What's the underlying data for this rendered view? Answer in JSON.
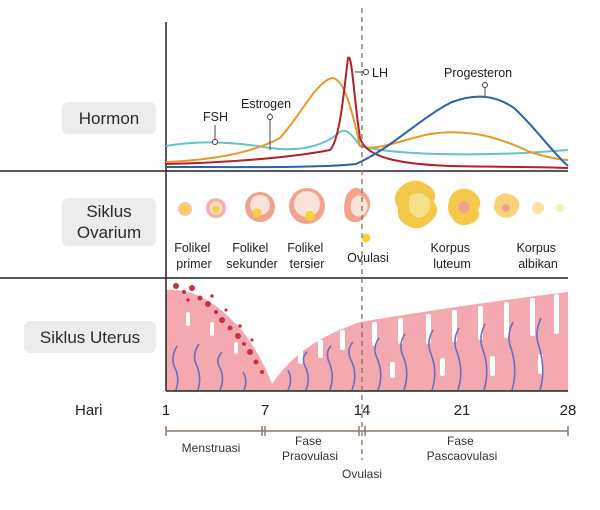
{
  "rows": {
    "hormon": "Hormon",
    "ovarium_line1": "Siklus",
    "ovarium_line2": "Ovarium",
    "uterus": "Siklus Uterus"
  },
  "hormones": {
    "fsh": "FSH",
    "estrogen": "Estrogen",
    "lh": "LH",
    "progesteron": "Progesteron"
  },
  "colors": {
    "fsh": "#66c2c6",
    "estrogen": "#e69a2a",
    "lh": "#b3202b",
    "progesteron": "#2d62a6",
    "uterus_tissue": "#f4a9b1",
    "blood": "#c8323c",
    "vessel": "#6a6fc0"
  },
  "ovary": {
    "folikel_primer": [
      "Folikel",
      "primer"
    ],
    "folikel_sekunder": [
      "Folikel",
      "sekunder"
    ],
    "folikel_tersier": [
      "Folikel",
      "tersier"
    ],
    "ovulasi": "Ovulasi",
    "korpus_luteum": [
      "Korpus",
      "luteum"
    ],
    "korpus_albikan": [
      "Korpus",
      "albikan"
    ]
  },
  "timeline": {
    "label": "Hari",
    "days": [
      "1",
      "7",
      "14",
      "21",
      "28"
    ]
  },
  "phases": {
    "menstruasi": "Menstruasi",
    "praovulasi": [
      "Fase",
      "Praovulasi"
    ],
    "pascaovulasi": [
      "Fase",
      "Pascaovulasi"
    ],
    "ovulasi": "Ovulasi"
  }
}
